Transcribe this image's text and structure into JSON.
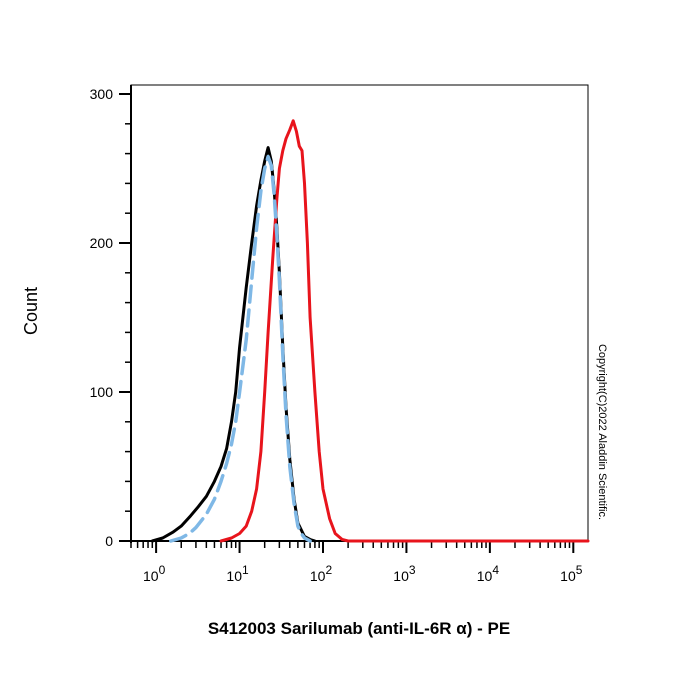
{
  "chart_data": {
    "type": "line",
    "title": "",
    "xlabel": "S412003 Sarilumab (anti-IL-6R α) - PE",
    "ylabel": "Count",
    "x_scale": "log",
    "xlim": [
      0.5,
      150000
    ],
    "ylim": [
      0,
      300
    ],
    "y_ticks": [
      0,
      100,
      200,
      300
    ],
    "x_ticks": [
      {
        "value": 1,
        "base": "10",
        "exp": "0"
      },
      {
        "value": 10,
        "base": "10",
        "exp": "1"
      },
      {
        "value": 100,
        "base": "10",
        "exp": "2"
      },
      {
        "value": 1000,
        "base": "10",
        "exp": "3"
      },
      {
        "value": 10000,
        "base": "10",
        "exp": "4"
      },
      {
        "value": 100000,
        "base": "10",
        "exp": "5"
      }
    ],
    "grid": false,
    "annotation": "Copyright(C)2022 Aladdin Scientific.",
    "series": [
      {
        "color": "#000000",
        "dash": false,
        "x": [
          0.9,
          1.2,
          1.6,
          2.0,
          2.6,
          3.2,
          4.0,
          5.0,
          6.0,
          7.0,
          8.0,
          9.0,
          10.0,
          12.0,
          14.0,
          16.0,
          18.0,
          20.0,
          22.0,
          24.0,
          26.0,
          28.0,
          30.0,
          33.0,
          36.0,
          40.0,
          45.0,
          50.0,
          60.0,
          70.0,
          80.0
        ],
        "y": [
          0,
          2,
          6,
          10,
          17,
          23,
          30,
          40,
          50,
          62,
          80,
          100,
          130,
          170,
          200,
          225,
          242,
          255,
          264,
          255,
          235,
          210,
          180,
          130,
          90,
          55,
          28,
          12,
          3,
          1,
          0
        ]
      },
      {
        "color": "#7fb8e6",
        "dash": true,
        "x": [
          1.5,
          2.0,
          2.5,
          3.0,
          4.0,
          5.0,
          6.0,
          7.0,
          8.0,
          9.0,
          10.0,
          12.0,
          14.0,
          16.0,
          18.0,
          20.0,
          22.0,
          24.0,
          26.0,
          28.0,
          30.0,
          33.0,
          36.0,
          40.0,
          45.0,
          50.0,
          55.0,
          60.0,
          70.0
        ],
        "y": [
          0,
          2,
          5,
          9,
          18,
          28,
          40,
          52,
          65,
          80,
          100,
          135,
          175,
          210,
          235,
          250,
          258,
          252,
          232,
          205,
          175,
          125,
          85,
          50,
          25,
          10,
          5,
          2,
          0
        ]
      },
      {
        "color": "#e8141c",
        "dash": false,
        "x": [
          6.0,
          8.0,
          10.0,
          12.0,
          14.0,
          16.0,
          18.0,
          20.0,
          22.0,
          25.0,
          28.0,
          30.0,
          33.0,
          36.0,
          40.0,
          44.0,
          48.0,
          52.0,
          56.0,
          60.0,
          65.0,
          70.0,
          80.0,
          90.0,
          100.0,
          120.0,
          140.0,
          170.0,
          200.0,
          250.0,
          300.0,
          150000.0
        ],
        "y": [
          0,
          2,
          5,
          10,
          20,
          35,
          60,
          100,
          140,
          190,
          230,
          250,
          262,
          270,
          276,
          282,
          275,
          265,
          262,
          240,
          200,
          150,
          100,
          60,
          35,
          15,
          5,
          1,
          0,
          0,
          0,
          0
        ]
      }
    ]
  }
}
